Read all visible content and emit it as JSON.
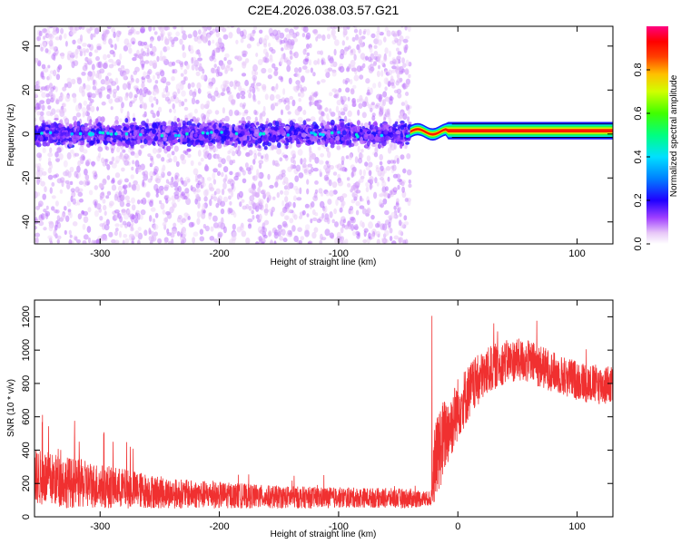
{
  "title": "C2E4.2026.038.03.57.G21",
  "chart_data": [
    {
      "type": "heatmap",
      "xlabel": "Height of straight line (km)",
      "ylabel": "Frequency (Hz)",
      "xlim": [
        -355,
        130
      ],
      "ylim": [
        -50,
        49
      ],
      "xticks": [
        -300,
        -200,
        -100,
        0,
        100
      ],
      "yticks": [
        -40,
        -20,
        0,
        20,
        40
      ],
      "colorbar": {
        "label": "Normalized spectral amplitude",
        "range": [
          0,
          1
        ],
        "ticks": [
          "0.0",
          "0.2",
          "0.4",
          "0.6",
          "0.8"
        ],
        "colormap": [
          "#ffffff",
          "#e8c8f8",
          "#8000ff",
          "#0000ff",
          "#00c8ff",
          "#00ff80",
          "#80ff00",
          "#ffff00",
          "#ff8000",
          "#ff0000",
          "#ff0080"
        ]
      },
      "regions": [
        {
          "x_range": [
            -355,
            -40
          ],
          "freq_center": 0,
          "band_halfwidth": 8,
          "scatter_halfwidth": 50,
          "amplitude": 0.12
        },
        {
          "x_range": [
            -40,
            130
          ],
          "freq_center": 1.5,
          "band_halfwidth": 1.5,
          "amplitude": 0.85
        }
      ]
    },
    {
      "type": "line",
      "xlabel": "Height of straight line (km)",
      "ylabel": "SNR (10 * v/v)",
      "xlim": [
        -355,
        130
      ],
      "ylim": [
        0,
        1300
      ],
      "xticks": [
        -300,
        -200,
        -100,
        0,
        100
      ],
      "yticks": [
        0,
        200,
        400,
        600,
        800,
        1000,
        1200
      ],
      "color": "#f03030",
      "series": [
        {
          "x": [
            -355,
            -320,
            -280,
            -240,
            -200,
            -160,
            -120,
            -80,
            -40,
            -22,
            -20,
            -15,
            -10,
            -5,
            0,
            10,
            20,
            30,
            40,
            50,
            60,
            70,
            80,
            90,
            100,
            110,
            120,
            130
          ],
          "mean": [
            240,
            200,
            170,
            140,
            130,
            120,
            115,
            115,
            110,
            110,
            300,
            420,
            500,
            560,
            650,
            760,
            840,
            900,
            930,
            940,
            930,
            900,
            870,
            840,
            820,
            800,
            790,
            790
          ],
          "spread": [
            170,
            150,
            120,
            90,
            80,
            70,
            65,
            60,
            60,
            40,
            220,
            260,
            220,
            200,
            190,
            170,
            150,
            140,
            130,
            130,
            130,
            130,
            120,
            120,
            120,
            120,
            120,
            120
          ]
        }
      ]
    }
  ]
}
